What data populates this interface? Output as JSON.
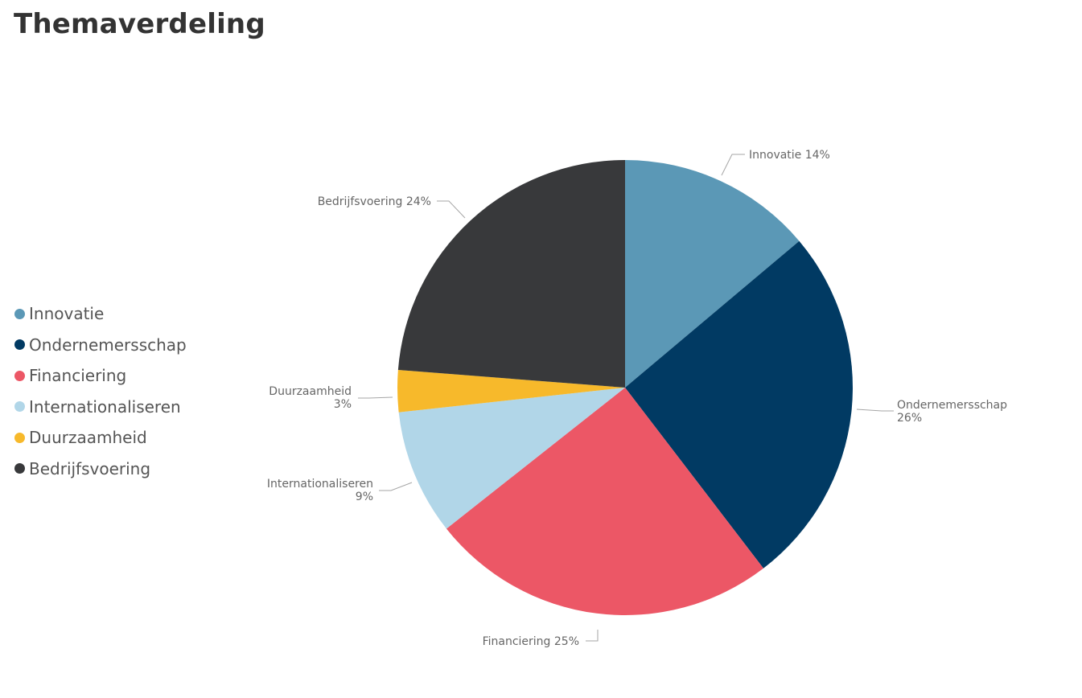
{
  "page": {
    "title": "Themaverdeling"
  },
  "chart_data": {
    "type": "pie",
    "title": "Themaverdeling",
    "legend_position": "left",
    "slices": [
      {
        "name": "Innovatie",
        "value": 14,
        "label": "Innovatie 14%",
        "color": "#5b98b6"
      },
      {
        "name": "Ondernemersschap",
        "value": 26,
        "label": "Ondernemersschap 26%",
        "color": "#013a63"
      },
      {
        "name": "Financiering",
        "value": 25,
        "label": "Financiering 25%",
        "color": "#ec5766"
      },
      {
        "name": "Internationaliseren",
        "value": 9,
        "label": "Internationaliseren 9%",
        "color": "#b1d6e8"
      },
      {
        "name": "Duurzaamheid",
        "value": 3,
        "label": "Duurzaamheid 3%",
        "color": "#f7b92b"
      },
      {
        "name": "Bedrijfsvoering",
        "value": 24,
        "label": "Bedrijfsvoering 24%",
        "color": "#38393b"
      }
    ]
  }
}
